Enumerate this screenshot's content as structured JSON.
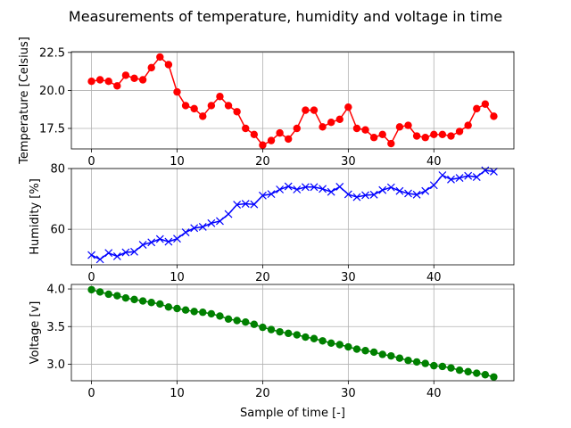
{
  "figure": {
    "title": "Measurements of temperature, humidity and voltage in time",
    "xlabel": "Sample of time [-]"
  },
  "chart_data": [
    {
      "type": "line",
      "ylabel": "Temperature [Celsius]",
      "xlim": [
        -2.35,
        49.35
      ],
      "ylim": [
        16.15,
        22.55
      ],
      "xticks": [
        0,
        10,
        20,
        30,
        40
      ],
      "yticks": [
        17.5,
        20.0,
        22.5
      ],
      "ytick_labels": [
        "17.5",
        "20.0",
        "22.5"
      ],
      "grid": true,
      "color": "#ff0000",
      "marker": "circle",
      "x": [
        0,
        1,
        2,
        3,
        4,
        5,
        6,
        7,
        8,
        9,
        10,
        11,
        12,
        13,
        14,
        15,
        16,
        17,
        18,
        19,
        20,
        21,
        22,
        23,
        24,
        25,
        26,
        27,
        28,
        29,
        30,
        31,
        32,
        33,
        34,
        35,
        36,
        37,
        38,
        39,
        40,
        41,
        42,
        43,
        44,
        45,
        46,
        47
      ],
      "values": [
        20.6,
        20.7,
        20.6,
        20.3,
        21.0,
        20.8,
        20.7,
        21.5,
        22.2,
        21.7,
        19.9,
        19.0,
        18.8,
        18.3,
        19.0,
        19.6,
        19.0,
        18.6,
        17.5,
        17.1,
        16.4,
        16.7,
        17.2,
        16.8,
        17.5,
        18.7,
        18.7,
        17.6,
        17.9,
        18.1,
        18.9,
        17.5,
        17.4,
        16.9,
        17.1,
        16.5,
        17.6,
        17.7,
        17.0,
        16.9,
        17.1,
        17.1,
        17.0,
        17.3,
        17.7,
        18.8,
        19.1,
        18.3
      ]
    },
    {
      "type": "line",
      "ylabel": "Humidity [%]",
      "xlim": [
        -2.35,
        49.35
      ],
      "ylim": [
        48.3,
        80.0
      ],
      "xticks": [
        0,
        10,
        20,
        30,
        40
      ],
      "yticks": [
        60,
        80
      ],
      "ytick_labels": [
        "60",
        "80"
      ],
      "grid": true,
      "color": "#0000ff",
      "marker": "x",
      "x": [
        0,
        1,
        2,
        3,
        4,
        5,
        6,
        7,
        8,
        9,
        10,
        11,
        12,
        13,
        14,
        15,
        16,
        17,
        18,
        19,
        20,
        21,
        22,
        23,
        24,
        25,
        26,
        27,
        28,
        29,
        30,
        31,
        32,
        33,
        34,
        35,
        36,
        37,
        38,
        39,
        40,
        41,
        42,
        43,
        44,
        45,
        46,
        47
      ],
      "values": [
        51.5,
        50.1,
        52.2,
        51.1,
        52.4,
        52.6,
        54.9,
        55.7,
        56.8,
        55.9,
        56.9,
        59.0,
        60.4,
        60.8,
        62.0,
        62.7,
        65.0,
        68.1,
        68.4,
        68.2,
        71.1,
        71.6,
        73.1,
        74.1,
        73.1,
        73.9,
        73.9,
        73.3,
        72.3,
        74.0,
        71.5,
        70.6,
        71.2,
        71.4,
        72.9,
        73.8,
        72.6,
        71.8,
        71.4,
        72.6,
        74.5,
        77.8,
        76.4,
        76.9,
        77.6,
        77.2,
        79.4,
        79.0
      ]
    },
    {
      "type": "line",
      "ylabel": "Voltage [v]",
      "xlim": [
        -2.35,
        49.35
      ],
      "ylim": [
        2.78,
        4.06
      ],
      "xticks": [
        0,
        10,
        20,
        30,
        40
      ],
      "yticks": [
        3.0,
        3.5,
        4.0
      ],
      "ytick_labels": [
        "3.0",
        "3.5",
        "4.0"
      ],
      "grid": true,
      "color": "#008000",
      "marker": "circle",
      "x": [
        0,
        1,
        2,
        3,
        4,
        5,
        6,
        7,
        8,
        9,
        10,
        11,
        12,
        13,
        14,
        15,
        16,
        17,
        18,
        19,
        20,
        21,
        22,
        23,
        24,
        25,
        26,
        27,
        28,
        29,
        30,
        31,
        32,
        33,
        34,
        35,
        36,
        37,
        38,
        39,
        40,
        41,
        42,
        43,
        44,
        45,
        46,
        47
      ],
      "values": [
        3.99,
        3.96,
        3.93,
        3.91,
        3.88,
        3.86,
        3.84,
        3.82,
        3.8,
        3.76,
        3.74,
        3.72,
        3.7,
        3.69,
        3.67,
        3.64,
        3.6,
        3.58,
        3.56,
        3.53,
        3.49,
        3.46,
        3.43,
        3.41,
        3.39,
        3.36,
        3.34,
        3.31,
        3.28,
        3.26,
        3.23,
        3.2,
        3.18,
        3.16,
        3.13,
        3.11,
        3.08,
        3.05,
        3.03,
        3.01,
        2.98,
        2.97,
        2.95,
        2.92,
        2.9,
        2.88,
        2.86,
        2.83
      ]
    }
  ]
}
